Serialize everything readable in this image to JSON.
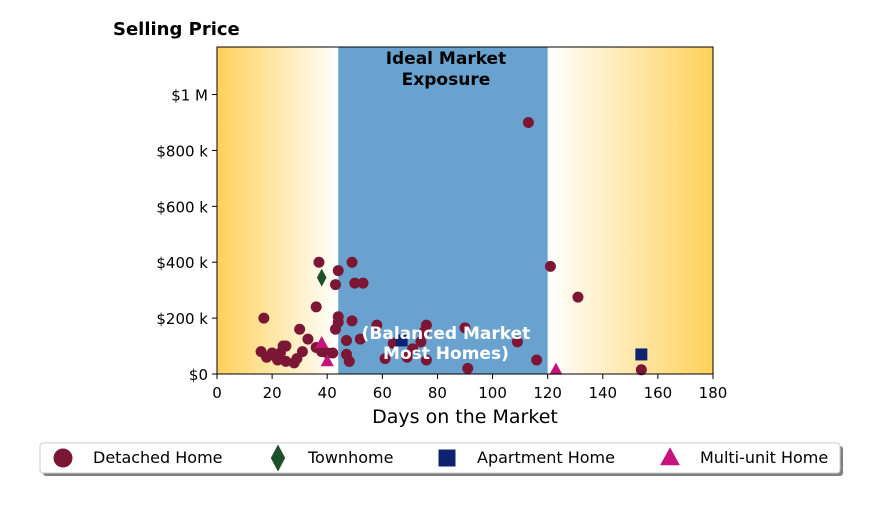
{
  "chart_data": {
    "type": "scatter",
    "title": "Selling Price",
    "xlabel": "Days on the Market",
    "ylabel": "",
    "xlim": [
      0,
      180
    ],
    "ylim": [
      0,
      1170000
    ],
    "xticks": [
      0,
      20,
      40,
      60,
      80,
      100,
      120,
      140,
      160,
      180
    ],
    "yticks": [
      {
        "value": 0,
        "label": "$0"
      },
      {
        "value": 200000,
        "label": "$200 k"
      },
      {
        "value": 400000,
        "label": "$400 k"
      },
      {
        "value": 600000,
        "label": "$600 k"
      },
      {
        "value": 800000,
        "label": "$800 k"
      },
      {
        "value": 1000000,
        "label": "$1 M"
      }
    ],
    "bands": [
      {
        "from": 0,
        "to": 44,
        "style": "gradient-left",
        "color": "#ffd159"
      },
      {
        "from": 44,
        "to": 120,
        "style": "solid",
        "color": "#6aa2cf",
        "label": "Ideal Market Exposure",
        "sublabel": "(Balanced Market Most Homes)"
      },
      {
        "from": 120,
        "to": 180,
        "style": "gradient-right",
        "color": "#ffd159"
      }
    ],
    "legend_position": "bottom",
    "series": [
      {
        "name": "Detached Home",
        "marker": "circle",
        "color": "#7b1734",
        "points": [
          [
            16,
            80000
          ],
          [
            17,
            200000
          ],
          [
            18,
            60000
          ],
          [
            20,
            75000
          ],
          [
            21,
            65000
          ],
          [
            22,
            50000
          ],
          [
            23,
            75000
          ],
          [
            24,
            100000
          ],
          [
            25,
            45000
          ],
          [
            25,
            100000
          ],
          [
            28,
            40000
          ],
          [
            29,
            55000
          ],
          [
            30,
            160000
          ],
          [
            31,
            80000
          ],
          [
            33,
            125000
          ],
          [
            36,
            240000
          ],
          [
            36,
            95000
          ],
          [
            37,
            400000
          ],
          [
            38,
            80000
          ],
          [
            40,
            75000
          ],
          [
            42,
            75000
          ],
          [
            43,
            320000
          ],
          [
            43,
            160000
          ],
          [
            44,
            370000
          ],
          [
            44,
            185000
          ],
          [
            44,
            205000
          ],
          [
            47,
            120000
          ],
          [
            47,
            70000
          ],
          [
            48,
            45000
          ],
          [
            49,
            400000
          ],
          [
            49,
            190000
          ],
          [
            50,
            325000
          ],
          [
            52,
            125000
          ],
          [
            53,
            325000
          ],
          [
            58,
            175000
          ],
          [
            61,
            55000
          ],
          [
            64,
            110000
          ],
          [
            69,
            60000
          ],
          [
            71,
            90000
          ],
          [
            74,
            115000
          ],
          [
            75,
            150000
          ],
          [
            76,
            175000
          ],
          [
            76,
            50000
          ],
          [
            90,
            165000
          ],
          [
            91,
            20000
          ],
          [
            109,
            115000
          ],
          [
            113,
            900000
          ],
          [
            116,
            50000
          ],
          [
            121,
            385000
          ],
          [
            131,
            275000
          ],
          [
            154,
            15000
          ]
        ]
      },
      {
        "name": "Townhome",
        "marker": "diamond",
        "color": "#1d5028",
        "points": [
          [
            38,
            345000
          ]
        ]
      },
      {
        "name": "Apartment Home",
        "marker": "square",
        "color": "#0e2270",
        "points": [
          [
            67,
            120000
          ],
          [
            154,
            70000
          ]
        ]
      },
      {
        "name": "Multi-unit Home",
        "marker": "triangle",
        "color": "#c4147c",
        "points": [
          [
            38,
            110000
          ],
          [
            40,
            45000
          ],
          [
            123,
            15000
          ]
        ]
      }
    ]
  }
}
